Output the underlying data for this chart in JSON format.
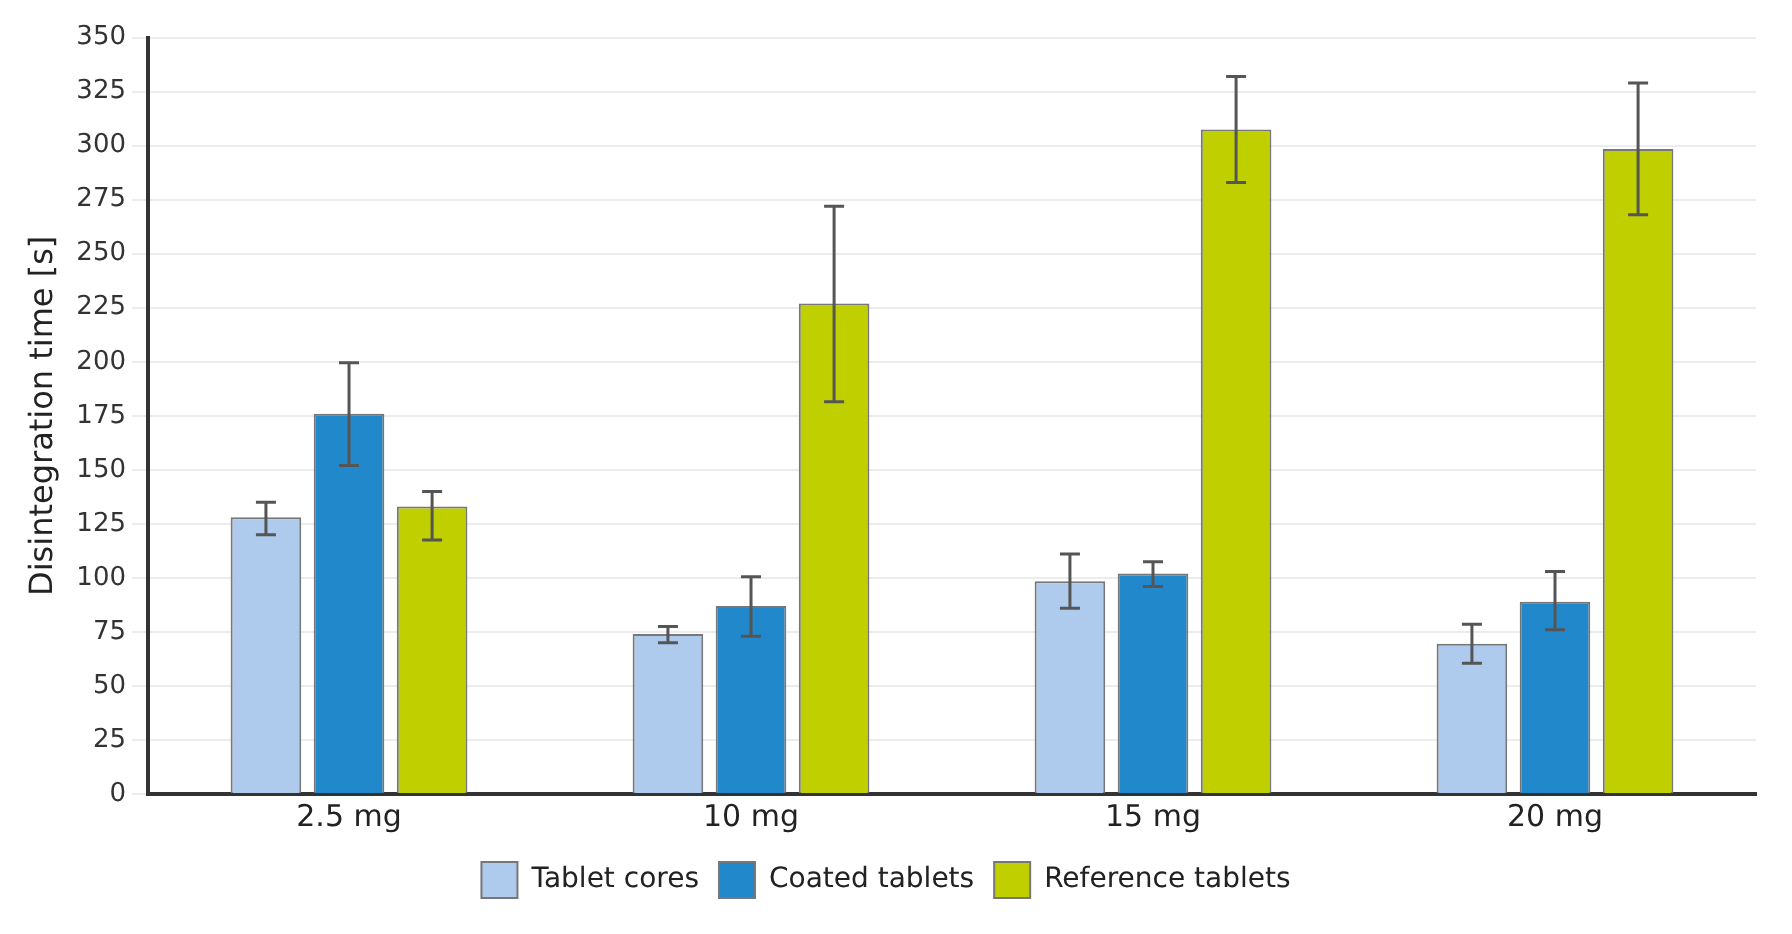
{
  "chart_data": {
    "type": "bar",
    "ylabel": "Disintegration time [s]",
    "categories": [
      "2.5 mg",
      "10 mg",
      "15 mg",
      "20 mg"
    ],
    "series": [
      {
        "name": "Tablet cores",
        "color": "#aecbee",
        "values": [
          128,
          74,
          98.5,
          69.5
        ],
        "errors": [
          [
            120,
            135
          ],
          [
            70,
            77.5
          ],
          [
            86,
            111
          ],
          [
            60.5,
            78.5
          ]
        ]
      },
      {
        "name": "Coated tablets",
        "color": "#2288cc",
        "values": [
          176,
          87,
          102,
          89
        ],
        "errors": [
          [
            152,
            199.5
          ],
          [
            73,
            100.5
          ],
          [
            96,
            107.5
          ],
          [
            76,
            103
          ]
        ]
      },
      {
        "name": "Reference tablets",
        "color": "#bfcf00",
        "values": [
          133,
          227,
          307.5,
          298.5
        ],
        "errors": [
          [
            117.5,
            140
          ],
          [
            181.5,
            272
          ],
          [
            283,
            332
          ],
          [
            268,
            329
          ]
        ]
      }
    ],
    "ylim": [
      0,
      350
    ],
    "yticks": [
      0,
      25,
      50,
      75,
      100,
      125,
      150,
      175,
      200,
      225,
      250,
      275,
      300,
      325,
      350
    ],
    "grid": "y",
    "legend": "bottom"
  }
}
